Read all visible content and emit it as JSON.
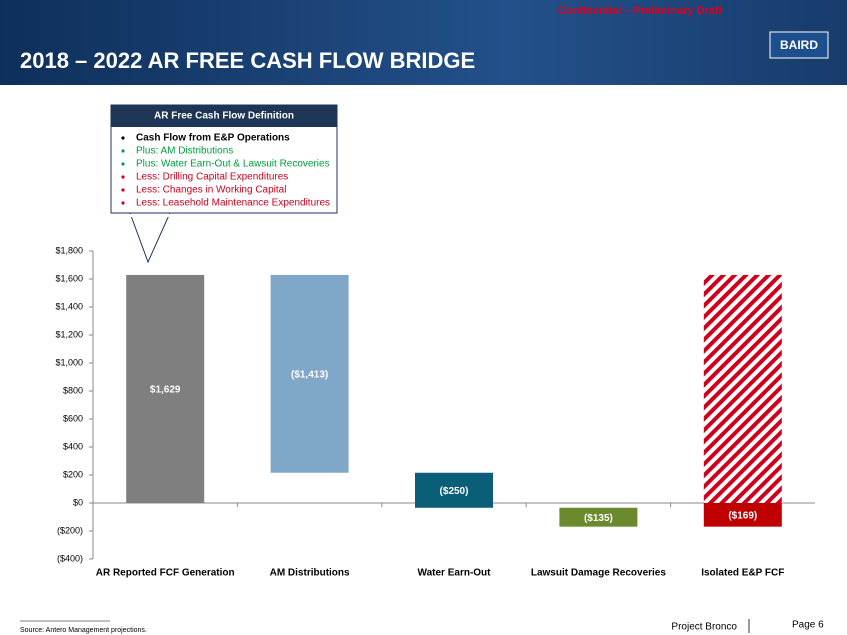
{
  "header": {
    "title": "2018 – 2022 AR FREE CASH FLOW BRIDGE",
    "confidential": "Confidential – Preliminary Draft",
    "logo": "BAIRD"
  },
  "callout": {
    "title": "AR Free Cash Flow Definition",
    "items": [
      {
        "text": "Cash Flow from E&P Operations",
        "color": "#000000"
      },
      {
        "text": "Plus: AM Distributions",
        "color": "#00a03c"
      },
      {
        "text": "Plus: Water Earn-Out & Lawsuit Recoveries",
        "color": "#00a03c"
      },
      {
        "text": "Less: Drilling Capital Expenditures",
        "color": "#d0001c"
      },
      {
        "text": "Less: Changes in Working Capital",
        "color": "#d0001c"
      },
      {
        "text": "Less: Leasehold Maintenance Expenditures",
        "color": "#d0001c"
      }
    ]
  },
  "chart_data": {
    "type": "waterfall",
    "categories": [
      "AR Reported FCF Generation",
      "AM Distributions",
      "Water Earn-Out",
      "Lawsuit Damage Recoveries",
      "Isolated E&P FCF"
    ],
    "values": [
      1629,
      -1413,
      -250,
      -135,
      -169
    ],
    "value_labels": [
      "$1,629",
      "($1,413)",
      "($250)",
      "($135)",
      "($169)"
    ],
    "colors": [
      "#7f7f7f",
      "#7fa7c8",
      "#0a5e78",
      "#6b8a2e",
      "#c00000"
    ],
    "ylim": [
      -400,
      1800
    ],
    "yticks": [
      {
        "value": -400,
        "label": "($400)"
      },
      {
        "value": -200,
        "label": "($200)"
      },
      {
        "value": 0,
        "label": "$0"
      },
      {
        "value": 200,
        "label": "$200"
      },
      {
        "value": 400,
        "label": "$400"
      },
      {
        "value": 600,
        "label": "$600"
      },
      {
        "value": 800,
        "label": "$800"
      },
      {
        "value": 1000,
        "label": "$1,000"
      },
      {
        "value": 1200,
        "label": "$1,200"
      },
      {
        "value": 1400,
        "label": "$1,400"
      },
      {
        "value": 1600,
        "label": "$1,600"
      },
      {
        "value": 1800,
        "label": "$1,800"
      }
    ]
  },
  "footer": {
    "source": "Source: Antero Management projections.",
    "project": "Project Bronco",
    "page": "Page 6"
  }
}
